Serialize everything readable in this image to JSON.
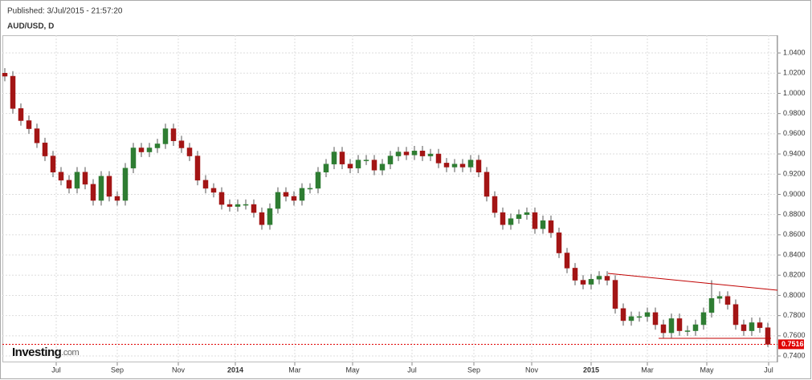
{
  "chart_data": {
    "type": "candlestick",
    "title": "AUD/USD, D",
    "subtitle": "Published: 3/Jul/2015 - 21:57:20",
    "source": {
      "name": "Investing",
      "suffix": ".com"
    },
    "grid": true,
    "xlim": [
      -0.3,
      96.2
    ],
    "xticks": [
      {
        "value": 6.4,
        "label": "Jul"
      },
      {
        "value": 14.0,
        "label": "Sep"
      },
      {
        "value": 21.6,
        "label": "Nov"
      },
      {
        "value": 28.7,
        "label": "2014"
      },
      {
        "value": 36.1,
        "label": "Mar"
      },
      {
        "value": 43.3,
        "label": "May"
      },
      {
        "value": 50.7,
        "label": "Jul"
      },
      {
        "value": 58.4,
        "label": "Sep"
      },
      {
        "value": 65.6,
        "label": "Nov"
      },
      {
        "value": 73.0,
        "label": "2015"
      },
      {
        "value": 80.0,
        "label": "Mar"
      },
      {
        "value": 87.4,
        "label": "May"
      },
      {
        "value": 95.1,
        "label": "Jul"
      }
    ],
    "ylim": [
      0.7337,
      1.0575
    ],
    "yticks": [
      {
        "value": 0.74,
        "label": "0.7400"
      },
      {
        "value": 0.76,
        "label": "0.7600"
      },
      {
        "value": 0.78,
        "label": "0.7800"
      },
      {
        "value": 0.8,
        "label": "0.8000"
      },
      {
        "value": 0.82,
        "label": "0.8200"
      },
      {
        "value": 0.84,
        "label": "0.8400"
      },
      {
        "value": 0.86,
        "label": "0.8600"
      },
      {
        "value": 0.88,
        "label": "0.8800"
      },
      {
        "value": 0.9,
        "label": "0.9000"
      },
      {
        "value": 0.92,
        "label": "0.9200"
      },
      {
        "value": 0.94,
        "label": "0.9400"
      },
      {
        "value": 0.96,
        "label": "0.9600"
      },
      {
        "value": 0.98,
        "label": "0.9800"
      },
      {
        "value": 1.0,
        "label": "1.0000"
      },
      {
        "value": 1.02,
        "label": "1.0200"
      },
      {
        "value": 1.04,
        "label": "1.0400"
      }
    ],
    "series": [
      {
        "up_color": "#2e7d32",
        "down_color": "#a31515",
        "open": [
          1.02,
          1.017,
          0.985,
          0.973,
          0.965,
          0.951,
          0.938,
          0.922,
          0.914,
          0.906,
          0.922,
          0.91,
          0.894,
          0.918,
          0.898,
          0.894,
          0.926,
          0.946,
          0.942,
          0.946,
          0.95,
          0.965,
          0.953,
          0.946,
          0.938,
          0.914,
          0.906,
          0.902,
          0.89,
          0.888,
          0.89,
          0.89,
          0.882,
          0.87,
          0.886,
          0.902,
          0.898,
          0.894,
          0.906,
          0.906,
          0.922,
          0.93,
          0.942,
          0.93,
          0.926,
          0.934,
          0.934,
          0.924,
          0.93,
          0.938,
          0.942,
          0.939,
          0.943,
          0.938,
          0.94,
          0.931,
          0.927,
          0.93,
          0.927,
          0.934,
          0.922,
          0.898,
          0.882,
          0.87,
          0.876,
          0.88,
          0.882,
          0.866,
          0.874,
          0.862,
          0.842,
          0.827,
          0.815,
          0.811,
          0.816,
          0.819,
          0.815,
          0.787,
          0.775,
          0.779,
          0.779,
          0.783,
          0.771,
          0.763,
          0.777,
          0.765,
          0.765,
          0.771,
          0.783,
          0.797,
          0.799,
          0.791,
          0.771,
          0.765,
          0.773,
          0.768
        ],
        "high": [
          1.025,
          1.022,
          0.99,
          0.978,
          0.97,
          0.956,
          0.943,
          0.927,
          0.919,
          0.927,
          0.927,
          0.915,
          0.923,
          0.923,
          0.903,
          0.931,
          0.951,
          0.951,
          0.951,
          0.955,
          0.97,
          0.97,
          0.958,
          0.951,
          0.943,
          0.919,
          0.911,
          0.907,
          0.895,
          0.895,
          0.895,
          0.895,
          0.887,
          0.891,
          0.907,
          0.907,
          0.903,
          0.911,
          0.911,
          0.927,
          0.935,
          0.947,
          0.947,
          0.935,
          0.939,
          0.939,
          0.939,
          0.935,
          0.943,
          0.947,
          0.947,
          0.948,
          0.948,
          0.945,
          0.945,
          0.936,
          0.935,
          0.935,
          0.939,
          0.939,
          0.927,
          0.903,
          0.887,
          0.881,
          0.885,
          0.887,
          0.887,
          0.879,
          0.879,
          0.867,
          0.847,
          0.832,
          0.82,
          0.821,
          0.824,
          0.824,
          0.82,
          0.792,
          0.784,
          0.784,
          0.788,
          0.788,
          0.776,
          0.782,
          0.782,
          0.77,
          0.776,
          0.788,
          0.815,
          0.804,
          0.804,
          0.796,
          0.776,
          0.778,
          0.778,
          0.773
        ],
        "low": [
          1.012,
          0.98,
          0.968,
          0.96,
          0.946,
          0.933,
          0.917,
          0.909,
          0.901,
          0.901,
          0.905,
          0.889,
          0.889,
          0.893,
          0.889,
          0.889,
          0.921,
          0.937,
          0.937,
          0.941,
          0.945,
          0.948,
          0.941,
          0.933,
          0.909,
          0.901,
          0.897,
          0.885,
          0.883,
          0.883,
          0.885,
          0.877,
          0.865,
          0.865,
          0.881,
          0.893,
          0.889,
          0.889,
          0.901,
          0.901,
          0.917,
          0.925,
          0.925,
          0.921,
          0.921,
          0.929,
          0.919,
          0.919,
          0.925,
          0.933,
          0.934,
          0.934,
          0.933,
          0.933,
          0.926,
          0.922,
          0.922,
          0.922,
          0.922,
          0.917,
          0.893,
          0.877,
          0.865,
          0.865,
          0.871,
          0.875,
          0.861,
          0.861,
          0.857,
          0.837,
          0.822,
          0.81,
          0.806,
          0.806,
          0.811,
          0.81,
          0.782,
          0.77,
          0.77,
          0.774,
          0.774,
          0.766,
          0.758,
          0.758,
          0.76,
          0.76,
          0.76,
          0.766,
          0.778,
          0.792,
          0.786,
          0.766,
          0.76,
          0.76,
          0.763,
          0.749
        ],
        "close": [
          1.017,
          0.985,
          0.973,
          0.965,
          0.951,
          0.938,
          0.922,
          0.914,
          0.906,
          0.922,
          0.91,
          0.894,
          0.918,
          0.898,
          0.894,
          0.926,
          0.946,
          0.942,
          0.946,
          0.95,
          0.965,
          0.953,
          0.946,
          0.938,
          0.914,
          0.906,
          0.902,
          0.89,
          0.888,
          0.89,
          0.89,
          0.882,
          0.87,
          0.886,
          0.902,
          0.898,
          0.894,
          0.906,
          0.906,
          0.922,
          0.93,
          0.942,
          0.93,
          0.926,
          0.934,
          0.934,
          0.924,
          0.93,
          0.938,
          0.942,
          0.939,
          0.943,
          0.938,
          0.94,
          0.931,
          0.927,
          0.93,
          0.927,
          0.934,
          0.922,
          0.898,
          0.882,
          0.87,
          0.876,
          0.88,
          0.882,
          0.866,
          0.874,
          0.862,
          0.842,
          0.827,
          0.815,
          0.811,
          0.816,
          0.819,
          0.815,
          0.787,
          0.775,
          0.779,
          0.779,
          0.783,
          0.771,
          0.763,
          0.777,
          0.765,
          0.765,
          0.771,
          0.783,
          0.797,
          0.799,
          0.791,
          0.771,
          0.765,
          0.773,
          0.768,
          0.7516
        ]
      }
    ],
    "last_price_color": "#e00000",
    "trendlines": [
      {
        "x": [
          75.1,
          96.2
        ],
        "y": [
          0.8218,
          0.8051
        ],
        "color": "#c00000"
      },
      {
        "x": [
          81.4,
          95.4
        ],
        "y": [
          0.7575,
          0.7575
        ],
        "color": "#c00000"
      }
    ]
  }
}
